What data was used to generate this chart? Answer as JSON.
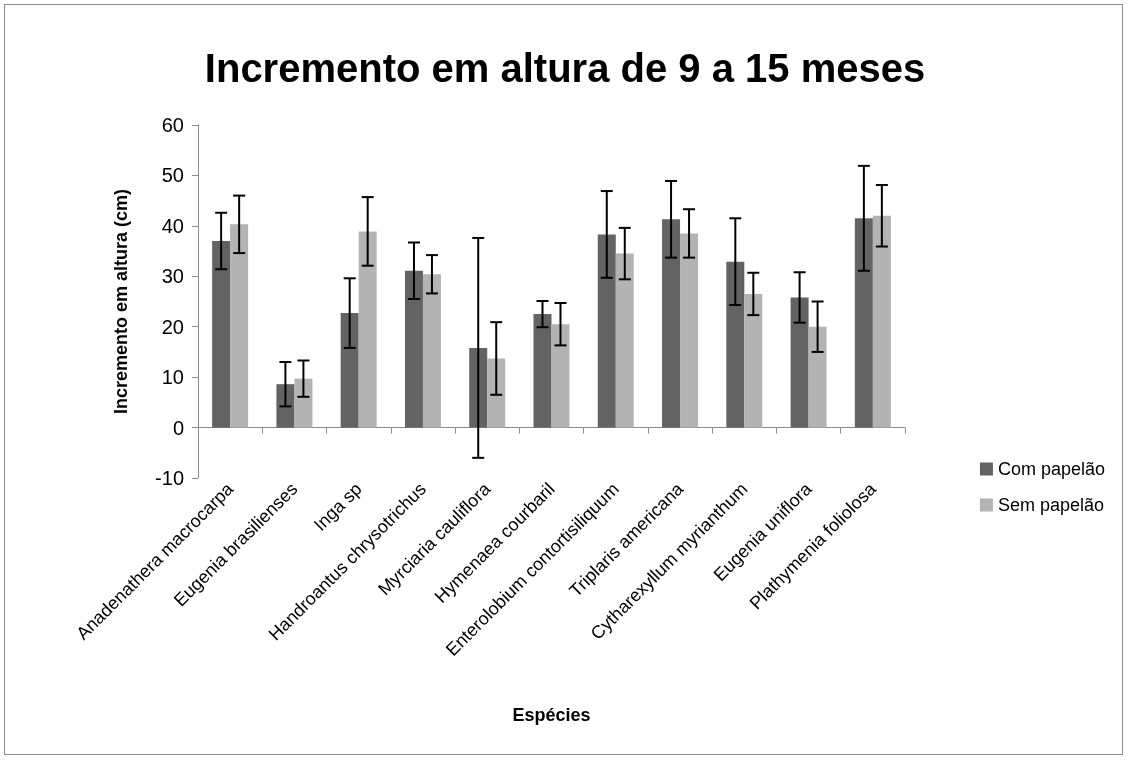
{
  "chart_data": {
    "type": "bar",
    "title": "Incremento em altura de 9 a 15 meses",
    "xlabel": "Espécies",
    "ylabel": "Incremento em altura (cm)",
    "categories": [
      "Anadenathera macrocarpa",
      "Eugenia brasilienses",
      "Inga sp",
      "Handroantus chrysotrichus",
      "Myrciaria cauliflora",
      "Hymenaea courbaril",
      "Enterolobium contortisiliquum",
      "Triplaris americana",
      "Cytharexyllum myrianthum",
      "Eugenia uniflora",
      "Plathymenia foliolosa"
    ],
    "series": [
      {
        "name": "Com papelão",
        "color": "#636363",
        "values": [
          37.0,
          8.6,
          22.7,
          31.1,
          15.8,
          22.5,
          38.3,
          41.3,
          32.9,
          25.8,
          41.5
        ],
        "errors": [
          5.6,
          4.4,
          6.9,
          5.6,
          21.8,
          2.6,
          8.6,
          7.6,
          8.6,
          5.0,
          10.4
        ]
      },
      {
        "name": "Sem papelão",
        "color": "#b3b3b3",
        "values": [
          40.3,
          9.7,
          38.9,
          30.4,
          13.7,
          20.5,
          34.5,
          38.5,
          26.5,
          20.0,
          42.0
        ],
        "errors": [
          5.7,
          3.6,
          6.8,
          3.8,
          7.2,
          4.2,
          5.1,
          4.8,
          4.2,
          5.0,
          6.1
        ]
      }
    ],
    "ylim": [
      -10,
      60
    ],
    "yticks": [
      -10,
      0,
      10,
      20,
      30,
      40,
      50,
      60
    ],
    "legend": "right"
  }
}
